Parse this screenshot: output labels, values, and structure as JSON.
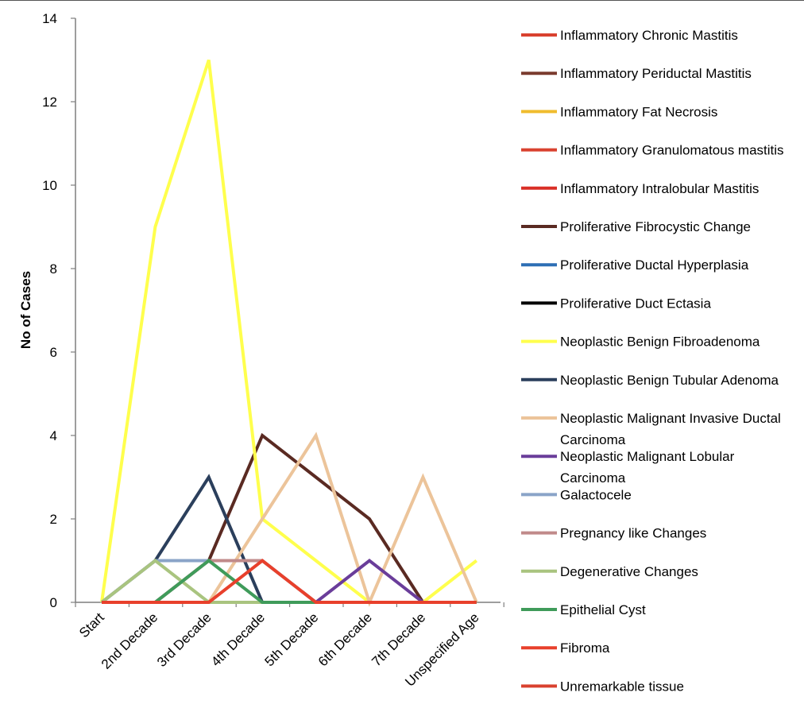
{
  "chart_data": {
    "type": "line",
    "title": "",
    "xlabel": "",
    "ylabel": "No of Cases",
    "ylim": [
      0,
      14
    ],
    "yticks": [
      0,
      2,
      4,
      6,
      8,
      10,
      12,
      14
    ],
    "categories": [
      "Start",
      "2nd Decade",
      "3rd Decade",
      "4th Decade",
      "5th Decade",
      "6th Decade",
      "7th Decade",
      "Unspecified Age"
    ],
    "grid": false,
    "legend_position": "right",
    "series": [
      {
        "name": "Inflammatory Chronic Mastitis",
        "color": "#d9412f",
        "values": [
          0,
          0,
          0,
          0,
          0,
          0,
          0,
          0
        ]
      },
      {
        "name": "Inflammatory Periductal Mastitis",
        "color": "#7a3b2e",
        "values": [
          0,
          0,
          0,
          0,
          0,
          0,
          0,
          0
        ]
      },
      {
        "name": "Inflammatory Fat Necrosis",
        "color": "#f0bc2e",
        "values": [
          0,
          0,
          0,
          0,
          0,
          0,
          0,
          0
        ]
      },
      {
        "name": "Inflammatory Granulomatous mastitis",
        "color": "#d9412f",
        "values": [
          0,
          0,
          0,
          0,
          0,
          0,
          0,
          0
        ]
      },
      {
        "name": "Inflammatory Intralobular Mastitis",
        "color": "#d92f26",
        "values": [
          0,
          0,
          0,
          0,
          0,
          0,
          0,
          0
        ]
      },
      {
        "name": "Proliferative Fibrocystic Change",
        "color": "#5a2a22",
        "values": [
          0,
          0,
          1,
          4,
          3,
          2,
          0,
          0
        ]
      },
      {
        "name": "Proliferative Ductal Hyperplasia",
        "color": "#2e6fb5",
        "values": [
          0,
          0,
          0,
          0,
          0,
          0,
          0,
          0
        ]
      },
      {
        "name": "Proliferative Duct Ectasia",
        "color": "#000000",
        "values": [
          0,
          0,
          0,
          0,
          0,
          0,
          0,
          0
        ]
      },
      {
        "name": "Neoplastic Benign Fibroadenoma",
        "color": "#ffff4d",
        "values": [
          0,
          9,
          13,
          2,
          1,
          0,
          0,
          1
        ]
      },
      {
        "name": "Neoplastic Benign Tubular Adenoma",
        "color": "#2b3f5c",
        "values": [
          0,
          1,
          3,
          0,
          0,
          0,
          0,
          0
        ]
      },
      {
        "name": "Neoplastic Malignant Invasive Ductal Carcinoma",
        "color": "#ecc49a",
        "values": [
          0,
          0,
          0,
          2,
          4,
          0,
          3,
          0
        ]
      },
      {
        "name": "Neoplastic Malignant Lobular Carcinoma",
        "color": "#6a3d9a",
        "values": [
          0,
          0,
          0,
          0,
          0,
          1,
          0,
          0
        ]
      },
      {
        "name": "Galactocele",
        "color": "#8aa4c8",
        "values": [
          0,
          1,
          1,
          1,
          0,
          0,
          0,
          0
        ]
      },
      {
        "name": "Pregnancy like Changes",
        "color": "#c08a8a",
        "values": [
          0,
          0,
          1,
          1,
          0,
          0,
          0,
          0
        ]
      },
      {
        "name": "Degenerative Changes",
        "color": "#a9c47f",
        "values": [
          0,
          1,
          0,
          0,
          0,
          0,
          0,
          0
        ]
      },
      {
        "name": "Epithelial Cyst",
        "color": "#3f9b5a",
        "values": [
          0,
          0,
          1,
          0,
          0,
          0,
          0,
          0
        ]
      },
      {
        "name": "Fibroma",
        "color": "#e8402c",
        "values": [
          0,
          0,
          0,
          1,
          0,
          0,
          0,
          0
        ]
      },
      {
        "name": "Unremarkable tissue",
        "color": "#d9412f",
        "values": [
          0,
          0,
          0,
          0,
          0,
          0,
          0,
          0
        ]
      }
    ]
  }
}
